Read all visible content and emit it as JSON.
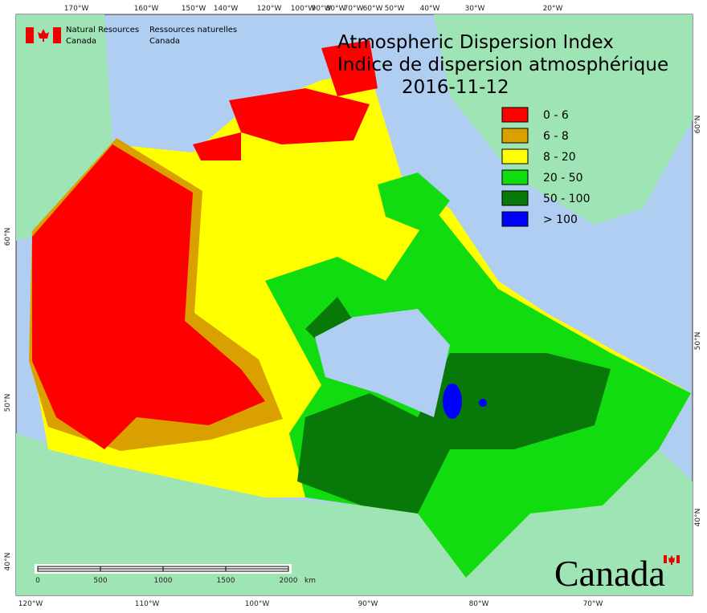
{
  "header": {
    "agency_en": [
      "Natural Resources",
      "Canada"
    ],
    "agency_fr": [
      "Ressources naturelles",
      "Canada"
    ]
  },
  "title": {
    "line1": "Atmospheric Dispersion Index",
    "line2": "Indice de dispersion atmosphérique",
    "date": "2016-11-12"
  },
  "legend": [
    {
      "label": "0 - 6",
      "color": "#ff0000"
    },
    {
      "label": "6 - 8",
      "color": "#daa000"
    },
    {
      "label": "8 - 20",
      "color": "#ffff00"
    },
    {
      "label": "20 - 50",
      "color": "#10dc10"
    },
    {
      "label": "50 - 100",
      "color": "#087808"
    },
    {
      "label": "> 100",
      "color": "#0000ff"
    }
  ],
  "graticule": {
    "top": [
      "170°W",
      "160°W",
      "150°W",
      "140°W",
      "120°W",
      "100°W",
      "90°W",
      "80°W",
      "70°W",
      "60°W",
      "50°W",
      "40°W",
      "30°W",
      "20°W"
    ],
    "bottom": [
      "120°W",
      "110°W",
      "100°W",
      "90°W",
      "80°W",
      "70°W"
    ],
    "left": [
      "60°N",
      "50°N",
      "40°N"
    ],
    "right": [
      "60°N",
      "50°N",
      "40°N"
    ]
  },
  "scale_bar": {
    "ticks": [
      0,
      500,
      1000,
      1500,
      2000
    ],
    "unit": "km"
  },
  "wordmark": "Canada"
}
